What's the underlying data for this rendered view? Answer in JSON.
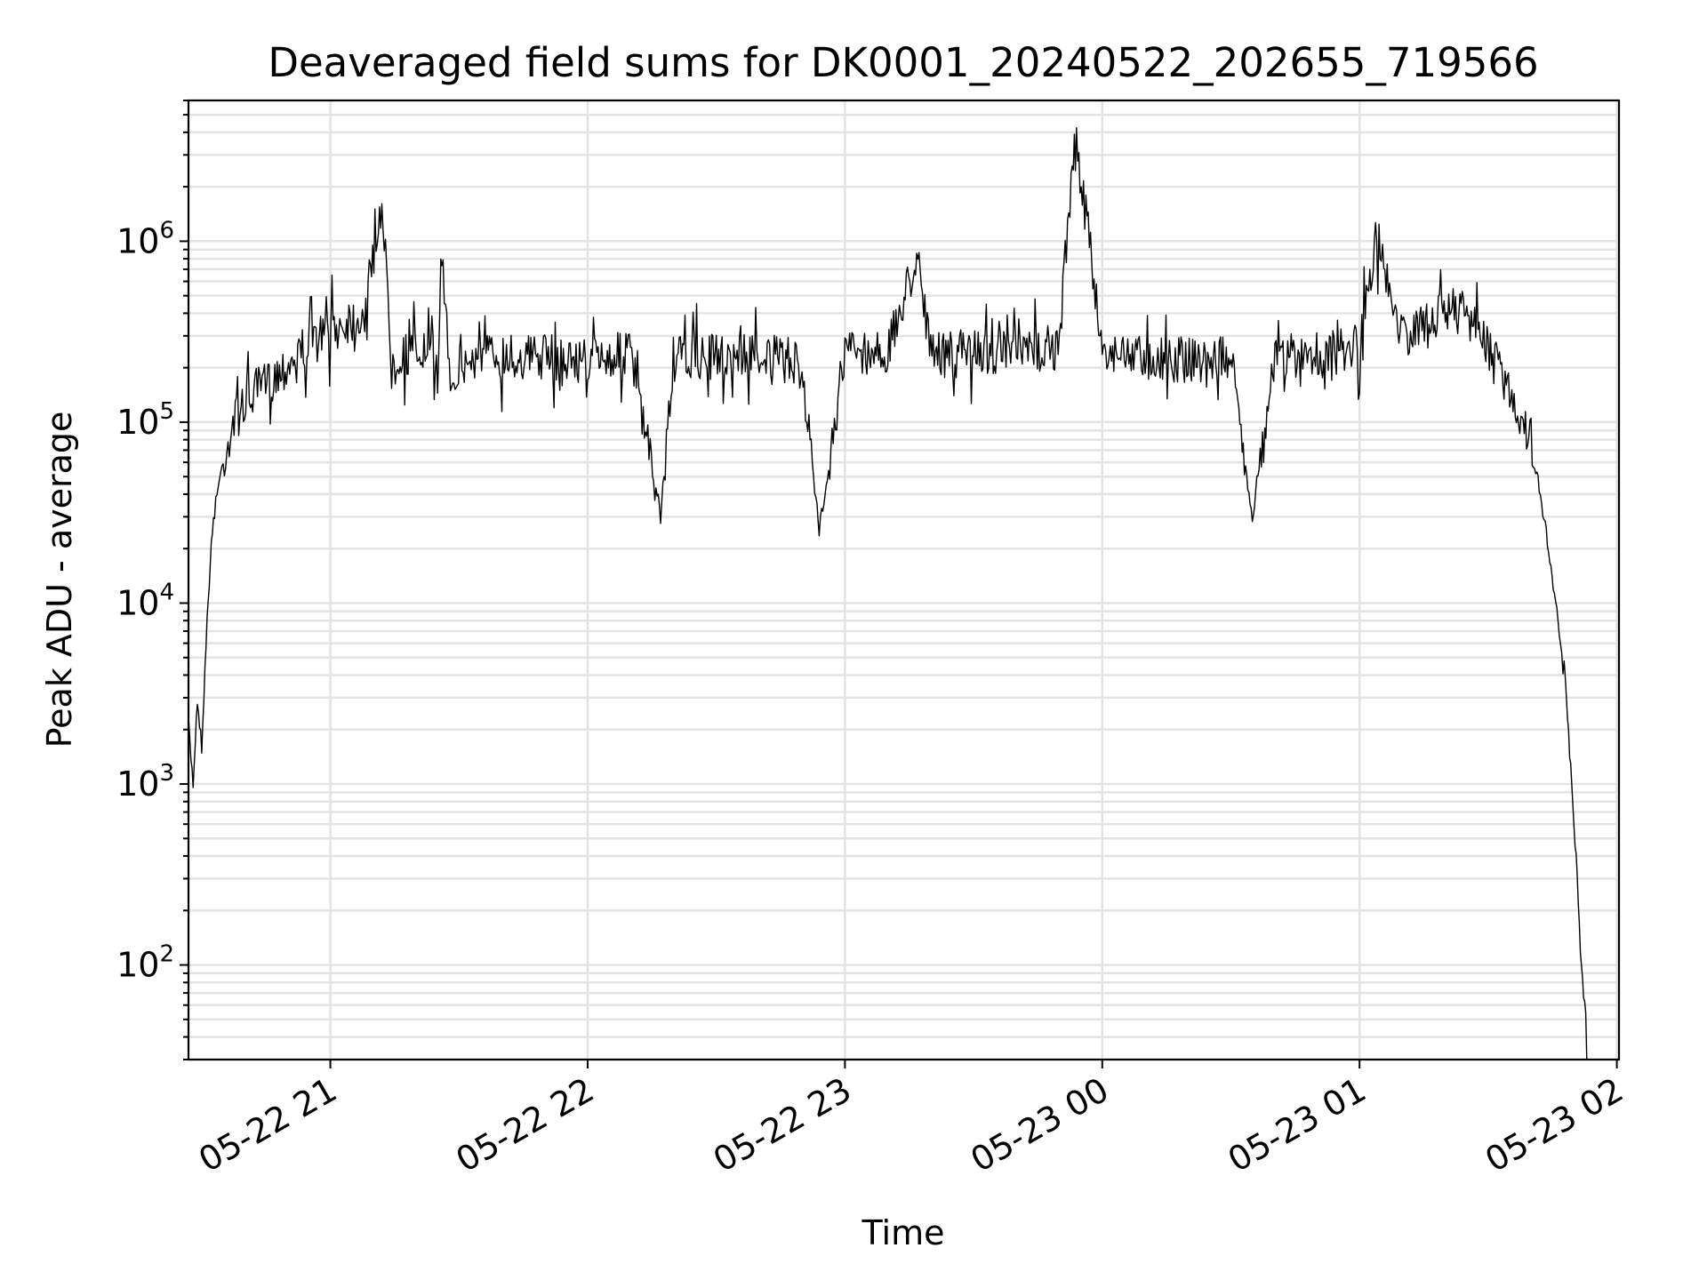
{
  "chart_data": {
    "type": "line",
    "title": "Deaveraged field sums for DK0001_20240522_202655_719566",
    "xlabel": "Time",
    "ylabel": "Peak ADU - average",
    "yscale": "log",
    "xlim": [
      "2024-05-22 20:26:55",
      "2024-05-23 02:00:30"
    ],
    "ylim": [
      30,
      6000000
    ],
    "grid": true,
    "line_color": "#000000",
    "x_ticks": [
      "05-22 21",
      "05-22 22",
      "05-22 23",
      "05-23 00",
      "05-23 01",
      "05-23 02"
    ],
    "x_tick_times": [
      "2024-05-22 21:00",
      "2024-05-22 22:00",
      "2024-05-22 23:00",
      "2024-05-23 00:00",
      "2024-05-23 01:00",
      "2024-05-23 02:00"
    ],
    "y_ticks": [
      100,
      1000,
      10000,
      100000,
      1000000
    ],
    "y_tick_labels": [
      {
        "base": "10",
        "exp": "2"
      },
      {
        "base": "10",
        "exp": "3"
      },
      {
        "base": "10",
        "exp": "4"
      },
      {
        "base": "10",
        "exp": "5"
      },
      {
        "base": "10",
        "exp": "6"
      }
    ],
    "series": [
      {
        "x": [
          "2024-05-22 20:27",
          "2024-05-22 20:28",
          "2024-05-22 20:29",
          "2024-05-22 20:30",
          "2024-05-22 20:31",
          "2024-05-22 20:32",
          "2024-05-22 20:33",
          "2024-05-22 20:35",
          "2024-05-22 20:37",
          "2024-05-22 20:40",
          "2024-05-22 20:43",
          "2024-05-22 20:46",
          "2024-05-22 20:50",
          "2024-05-22 20:54",
          "2024-05-22 20:58",
          "2024-05-22 21:03",
          "2024-05-22 21:08",
          "2024-05-22 21:12",
          "2024-05-22 21:14",
          "2024-05-22 21:16",
          "2024-05-22 21:20",
          "2024-05-22 21:25",
          "2024-05-22 21:26",
          "2024-05-22 21:28",
          "2024-05-22 21:35",
          "2024-05-22 21:40",
          "2024-05-22 21:50",
          "2024-05-22 22:00",
          "2024-05-22 22:10",
          "2024-05-22 22:17",
          "2024-05-22 22:20",
          "2024-05-22 22:30",
          "2024-05-22 22:40",
          "2024-05-22 22:50",
          "2024-05-22 22:54",
          "2024-05-22 23:00",
          "2024-05-22 23:10",
          "2024-05-22 23:17",
          "2024-05-22 23:20",
          "2024-05-22 23:30",
          "2024-05-22 23:40",
          "2024-05-22 23:50",
          "2024-05-22 23:53",
          "2024-05-22 23:54",
          "2024-05-23 00:00",
          "2024-05-23 00:10",
          "2024-05-23 00:20",
          "2024-05-23 00:30",
          "2024-05-23 00:35",
          "2024-05-23 00:40",
          "2024-05-23 00:50",
          "2024-05-23 01:00",
          "2024-05-23 01:04",
          "2024-05-23 01:10",
          "2024-05-23 01:17",
          "2024-05-23 01:20",
          "2024-05-23 01:25",
          "2024-05-23 01:30",
          "2024-05-23 01:35",
          "2024-05-23 01:40",
          "2024-05-23 01:43",
          "2024-05-23 01:46",
          "2024-05-23 01:48",
          "2024-05-23 01:49",
          "2024-05-23 01:50",
          "2024-05-23 01:51",
          "2024-05-23 01:52",
          "2024-05-23 01:53"
        ],
        "y": [
          2000,
          1000,
          3000,
          1600,
          6000,
          17000,
          35000,
          60000,
          95000,
          130000,
          150000,
          170000,
          210000,
          260000,
          300000,
          350000,
          400000,
          1700000,
          280000,
          230000,
          250000,
          220000,
          850000,
          180000,
          240000,
          230000,
          230000,
          220000,
          240000,
          30000,
          220000,
          230000,
          240000,
          200000,
          25000,
          250000,
          240000,
          900000,
          230000,
          250000,
          240000,
          260000,
          2600000,
          3500000,
          250000,
          230000,
          220000,
          220000,
          30000,
          230000,
          230000,
          260000,
          1050000,
          300000,
          350000,
          420000,
          400000,
          250000,
          150000,
          80000,
          30000,
          9000,
          4000,
          1500,
          600,
          250,
          90,
          40
        ]
      }
    ]
  }
}
